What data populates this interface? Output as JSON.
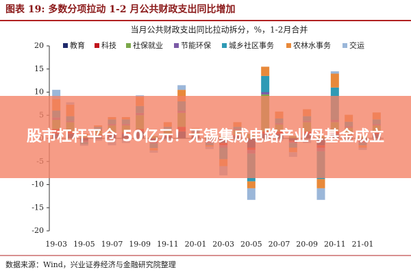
{
  "header": {
    "title": "图表 19:  多数分项拉动 1-2 月公共财政支出同比增加"
  },
  "chart_data": {
    "type": "stacked_bar",
    "title": "当月公共财政支出同比拉动拆分，%，1-2月合并",
    "categories": [
      "19-03",
      null,
      "19-05",
      null,
      "19-07",
      null,
      "19-09",
      null,
      "19-11",
      null,
      "20-01",
      null,
      "20-03",
      null,
      "20-05",
      null,
      "20-07",
      null,
      "20-09",
      null,
      "20-11",
      null,
      "21-01",
      null
    ],
    "series": [
      {
        "name": "教育",
        "color": "#1f2a6b",
        "values": [
          1,
          1,
          -0.5,
          0.5,
          1,
          1,
          1.5,
          -0.5,
          0.5,
          1.5,
          0.5,
          -0.5,
          -1,
          0.5,
          -2,
          1,
          1,
          -0.5,
          1,
          -1.5,
          1,
          0.5,
          -0.5,
          1
        ]
      },
      {
        "name": "科技",
        "color": "#c0141c",
        "values": [
          1,
          0.5,
          0.2,
          0.3,
          0.3,
          0.3,
          0.5,
          -0.3,
          0.3,
          1,
          0.2,
          -0.2,
          -0.5,
          0.3,
          -0.5,
          0.5,
          0.5,
          -0.2,
          0.5,
          -0.5,
          0.5,
          0.3,
          -0.2,
          0.3
        ]
      },
      {
        "name": "社保就业",
        "color": "#7ba84a",
        "values": [
          2,
          2,
          0.5,
          1,
          1.5,
          1.5,
          3,
          0.5,
          1,
          3,
          0.5,
          0.3,
          0.5,
          1,
          1,
          8,
          1.5,
          0.5,
          2,
          0.5,
          2,
          1.5,
          0.5,
          1.5
        ]
      },
      {
        "name": "节能环保",
        "color": "#7b5aa6",
        "values": [
          0.5,
          0.3,
          -0.3,
          0.2,
          0.3,
          0.3,
          0.5,
          -0.3,
          0.2,
          0.5,
          0.2,
          -0.3,
          -0.5,
          0.2,
          -0.8,
          0.5,
          0.3,
          -0.3,
          0.3,
          -0.8,
          0.5,
          0.3,
          -0.3,
          0.3
        ]
      },
      {
        "name": "城乡社区事务",
        "color": "#2e9ab5",
        "values": [
          1.5,
          1,
          -0.5,
          0.5,
          1,
          1,
          1.5,
          -1,
          0.5,
          2,
          0.3,
          -0.5,
          -2.5,
          0.5,
          -6,
          3.5,
          1,
          -1,
          1,
          -6,
          7,
          1,
          -0.5,
          1
        ]
      },
      {
        "name": "农林水事务",
        "color": "#e8893a",
        "values": [
          2.5,
          2.5,
          0.3,
          0.3,
          0.5,
          0.5,
          2,
          -0.5,
          1,
          2.5,
          0.5,
          -0.3,
          -1.5,
          1,
          -1.5,
          2,
          1.5,
          -1,
          1.5,
          -2,
          3,
          1.5,
          -0.5,
          1.5
        ]
      },
      {
        "name": "交运",
        "color": "#9bb7d9",
        "values": [
          2,
          0.5,
          -0.3,
          -0.5,
          -1.5,
          -1,
          0.3,
          -0.5,
          -0.5,
          1,
          -0.3,
          -0.5,
          -2,
          -0.5,
          -2.5,
          -0.5,
          -0.5,
          -1,
          -1,
          -2.5,
          0.5,
          -0.5,
          -0.5,
          -0.5
        ]
      }
    ],
    "ylim": [
      -20,
      20
    ],
    "yticks": [
      -20,
      -15,
      -10,
      -5,
      0,
      5,
      10,
      15,
      20
    ]
  },
  "source": "数据来源：Wind，兴业证券经济与金融研究院整理",
  "banner": "股市杠杆平仓 50亿元！无锡集成电路产业母基金成立"
}
